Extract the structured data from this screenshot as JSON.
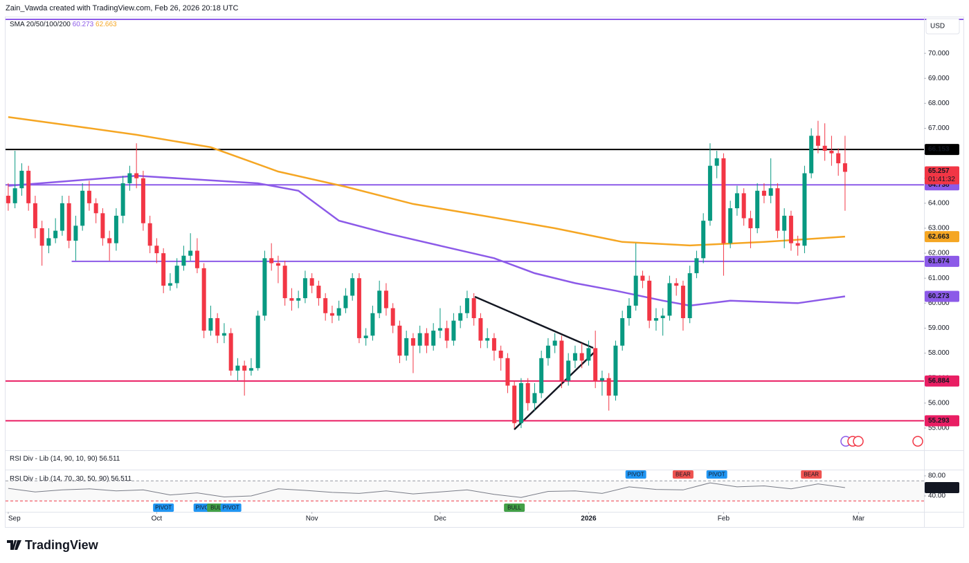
{
  "header": {
    "attribution": "Zain_Vawda created with TradingView.com, Feb 26, 2026 20:18 UTC",
    "indicator": "SMA 20/50/100/200",
    "currency": "USD",
    "brand": "TradingView"
  },
  "chart_data": [
    {
      "type": "candlestick",
      "open": [
        64.3,
        64.0,
        64.6,
        65.3,
        64.0,
        63.0,
        62.3,
        62.6,
        62.9,
        64.0,
        62.5,
        63.1,
        64.5,
        64.0,
        63.6,
        62.6,
        62.4,
        63.5,
        64.8,
        65.2,
        65.0,
        63.2,
        62.3,
        62.0,
        60.7,
        60.8,
        61.5,
        61.9,
        62.1,
        61.4,
        58.9,
        59.4,
        58.7,
        58.8,
        57.3,
        57.5,
        57.3,
        57.4,
        59.5,
        61.8,
        61.6,
        61.5,
        60.2,
        60.1,
        60.2,
        61.0,
        60.7,
        60.2,
        59.6,
        59.5,
        59.8,
        60.3,
        61.0,
        58.6,
        58.7,
        59.6,
        60.5,
        59.8,
        59.1,
        57.9,
        58.6,
        58.3,
        58.8,
        58.3,
        58.9,
        59.0,
        58.5,
        59.3,
        59.6,
        60.2,
        59.4,
        58.5,
        58.6,
        58.1,
        57.8,
        56.7,
        55.2,
        56.8,
        56.0,
        56.4,
        57.8,
        58.3,
        58.5,
        56.9,
        57.7,
        58.0,
        57.7,
        58.2,
        56.9,
        57.0,
        56.3,
        58.3,
        59.4,
        59.9,
        61.1,
        60.9,
        59.3,
        59.4,
        59.5,
        60.8,
        60.7,
        59.4,
        61.2,
        61.8,
        63.3,
        65.5,
        65.8,
        62.4,
        63.8,
        64.4,
        63.4,
        63.0,
        64.5,
        64.3,
        64.6,
        62.9,
        63.5,
        62.4,
        62.3,
        65.2,
        66.7,
        66.3,
        66.1,
        66.0,
        65.6
      ],
      "high": [
        64.8,
        66.1,
        65.6,
        65.5,
        64.3,
        63.3,
        63.0,
        63.4,
        64.3,
        64.3,
        63.5,
        64.8,
        64.9,
        64.2,
        63.8,
        62.9,
        63.8,
        65.1,
        65.5,
        66.4,
        65.3,
        63.5,
        62.6,
        62.2,
        61.2,
        61.8,
        62.3,
        62.8,
        62.6,
        61.6,
        59.9,
        59.6,
        59.2,
        59.0,
        57.8,
        57.7,
        57.8,
        59.7,
        62.1,
        62.4,
        61.9,
        61.7,
        60.6,
        60.5,
        61.3,
        61.2,
        60.9,
        60.4,
        59.9,
        60.1,
        60.6,
        61.2,
        61.2,
        59.0,
        59.9,
        60.9,
        60.8,
        60.0,
        59.3,
        58.9,
        58.8,
        59.1,
        59.0,
        59.2,
        59.8,
        59.3,
        59.6,
        59.9,
        60.5,
        60.4,
        59.6,
        59.0,
        58.8,
        58.3,
        58.0,
        56.9,
        57.0,
        57.0,
        56.8,
        58.1,
        58.6,
        58.8,
        58.7,
        58.0,
        58.3,
        58.4,
        58.5,
        58.9,
        57.3,
        57.2,
        58.5,
        59.7,
        60.2,
        62.4,
        61.3,
        61.1,
        59.8,
        59.8,
        61.1,
        61.0,
        60.9,
        61.5,
        62.1,
        63.6,
        66.4,
        66.1,
        66.0,
        64.1,
        64.7,
        64.6,
        63.7,
        64.8,
        64.8,
        65.8,
        64.8,
        63.8,
        63.7,
        62.7,
        65.5,
        67.0,
        67.3,
        67.2,
        66.7,
        66.2,
        66.7
      ],
      "low": [
        63.7,
        63.8,
        64.3,
        63.7,
        62.6,
        61.5,
        62.0,
        62.4,
        62.7,
        62.2,
        61.7,
        62.9,
        63.7,
        63.2,
        62.3,
        61.7,
        62.1,
        63.2,
        64.5,
        64.6,
        62.9,
        62.0,
        61.6,
        60.4,
        60.5,
        60.6,
        61.3,
        61.7,
        61.2,
        58.6,
        58.7,
        58.4,
        58.4,
        57.1,
        56.9,
        56.3,
        57.1,
        57.3,
        59.3,
        61.3,
        60.8,
        59.9,
        59.7,
        59.8,
        60.0,
        60.4,
        59.9,
        59.3,
        59.2,
        59.3,
        59.6,
        60.1,
        58.4,
        58.3,
        58.5,
        59.4,
        59.5,
        58.8,
        57.6,
        57.7,
        57.2,
        58.0,
        58.0,
        58.1,
        58.6,
        58.2,
        58.3,
        59.0,
        59.4,
        59.1,
        58.2,
        58.2,
        57.7,
        57.3,
        56.4,
        55.0,
        55.0,
        55.7,
        55.7,
        56.2,
        57.5,
        58.0,
        56.6,
        56.7,
        57.4,
        57.4,
        57.5,
        56.6,
        56.3,
        55.7,
        56.1,
        58.1,
        59.1,
        59.7,
        60.6,
        59.0,
        58.9,
        58.7,
        59.3,
        60.3,
        58.9,
        59.2,
        61.0,
        61.6,
        63.1,
        65.0,
        61.1,
        62.2,
        63.5,
        63.1,
        62.2,
        62.8,
        64.0,
        64.0,
        62.6,
        62.2,
        62.1,
        61.9,
        62.0,
        65.0,
        66.0,
        65.7,
        65.5,
        65.1,
        63.7
      ],
      "close": [
        64.0,
        64.6,
        65.3,
        64.0,
        63.0,
        62.3,
        62.6,
        62.9,
        64.0,
        62.5,
        63.1,
        64.5,
        64.0,
        63.6,
        62.6,
        62.4,
        63.5,
        64.8,
        65.2,
        65.0,
        63.2,
        62.3,
        62.0,
        60.7,
        60.8,
        61.5,
        61.9,
        62.1,
        61.4,
        58.9,
        59.4,
        58.7,
        58.8,
        57.3,
        57.5,
        57.3,
        57.4,
        59.5,
        61.8,
        61.6,
        61.5,
        60.2,
        60.1,
        60.2,
        61.0,
        60.7,
        60.2,
        59.6,
        59.5,
        59.8,
        60.3,
        61.0,
        58.6,
        58.7,
        59.6,
        60.5,
        59.8,
        59.1,
        57.9,
        58.6,
        58.3,
        58.8,
        58.3,
        58.9,
        59.0,
        58.5,
        59.3,
        59.6,
        60.2,
        59.4,
        58.5,
        58.6,
        58.1,
        57.8,
        56.7,
        55.2,
        56.8,
        56.0,
        56.4,
        57.8,
        58.3,
        58.5,
        56.9,
        57.7,
        58.0,
        57.7,
        58.2,
        56.9,
        57.0,
        56.3,
        58.3,
        59.4,
        59.9,
        61.1,
        60.9,
        59.3,
        59.4,
        59.5,
        60.8,
        60.7,
        59.4,
        61.2,
        61.8,
        63.3,
        65.5,
        65.8,
        62.4,
        63.8,
        64.4,
        63.4,
        63.0,
        64.5,
        64.3,
        64.6,
        62.9,
        63.5,
        62.4,
        62.3,
        65.2,
        66.7,
        66.3,
        66.1,
        66.0,
        65.6,
        65.257
      ],
      "up_color": "#089981",
      "down_color": "#f23645",
      "countdown": "01:41:32",
      "series": [
        {
          "color": "#8c5ae8",
          "x": [
            0,
            19,
            37,
            43,
            49,
            56,
            64,
            72,
            78,
            84,
            90,
            97,
            101,
            107,
            117,
            124
          ],
          "values": [
            64.7,
            65.1,
            64.8,
            64.5,
            63.3,
            62.8,
            62.3,
            61.8,
            61.2,
            60.8,
            60.5,
            60.1,
            59.9,
            60.1,
            60.0,
            60.273
          ]
        },
        {
          "color": "#f5a623",
          "x": [
            0,
            9,
            19,
            30,
            40,
            50,
            60,
            71,
            81,
            91,
            101,
            112,
            124
          ],
          "values": [
            67.45,
            67.12,
            66.74,
            66.24,
            65.27,
            64.66,
            63.97,
            63.47,
            63.0,
            62.45,
            62.31,
            62.45,
            62.663
          ]
        }
      ],
      "levels": [
        {
          "value": 66.153,
          "color": "#000000"
        },
        {
          "value": 64.738,
          "color": "#8c5ae8"
        },
        {
          "value": 61.674,
          "color": "#8c5ae8",
          "x_start": 9.4
        },
        {
          "value": 56.884,
          "color": "#e91e63"
        },
        {
          "value": 55.293,
          "color": "#e91e63"
        }
      ],
      "xlim": [
        -0.4,
        135.7
      ],
      "xticks": [
        {
          "value": 0,
          "label": "Sep"
        },
        {
          "value": 22,
          "label": "Oct"
        },
        {
          "value": 45,
          "label": "Nov"
        },
        {
          "value": 64,
          "label": "Dec"
        },
        {
          "value": 86,
          "label": "2026"
        },
        {
          "value": 106,
          "label": "Feb"
        },
        {
          "value": 126,
          "label": "Mar"
        }
      ],
      "ylim": [
        54.14,
        71.36
      ],
      "yticks": [
        {
          "value": 55,
          "label": "55.000"
        },
        {
          "value": 56,
          "label": "56.000"
        },
        {
          "value": 57,
          "label": "57.000"
        },
        {
          "value": 58,
          "label": "58.000"
        },
        {
          "value": 59,
          "label": "59.000"
        },
        {
          "value": 60,
          "label": "60.000"
        },
        {
          "value": 61,
          "label": "61.000"
        },
        {
          "value": 62,
          "label": "62.000"
        },
        {
          "value": 63,
          "label": "63.000"
        },
        {
          "value": 64,
          "label": "64.000"
        },
        {
          "value": 65,
          "label": "65.000"
        },
        {
          "value": 66,
          "label": "66.000"
        },
        {
          "value": 67,
          "label": "67.000"
        },
        {
          "value": 68,
          "label": "68.000"
        },
        {
          "value": 69,
          "label": "69.000"
        },
        {
          "value": 70,
          "label": "70.000"
        }
      ],
      "grid": false
    },
    {
      "type": "line",
      "titles": [
        "RSI Div - Lib (14, 90, 10, 90)",
        "RSI Div - Lib (14, 70, 30, 50, 90)"
      ],
      "x": [
        0,
        4,
        8,
        12,
        16,
        20,
        24,
        28,
        32,
        36,
        40,
        44,
        48,
        52,
        56,
        60,
        64,
        68,
        72,
        76,
        80,
        84,
        88,
        92,
        96,
        100,
        104,
        108,
        112,
        116,
        120,
        124
      ],
      "values": [
        55,
        48,
        52,
        54,
        50,
        52,
        42,
        46,
        38,
        40,
        54,
        51,
        47,
        45,
        50,
        44,
        48,
        52,
        43,
        37,
        49,
        50,
        45,
        58,
        53,
        52,
        66,
        58,
        60,
        54,
        64,
        56.511
      ],
      "color": "#787b86",
      "ylim": [
        8.3,
        91
      ],
      "yticks": [
        {
          "value": 80,
          "label": "80.00"
        },
        {
          "value": 40,
          "label": "40.00"
        }
      ],
      "levels": [
        {
          "value": 70,
          "color": "#9598a1"
        },
        {
          "value": 30,
          "color": "#f23645"
        }
      ],
      "annotations": [
        {
          "label": "PIVOT",
          "x": 23,
          "position": "below",
          "color": "#2196f3"
        },
        {
          "label": "PIVOT",
          "x": 29,
          "position": "below",
          "color": "#2196f3"
        },
        {
          "label": "BULL",
          "x": 31,
          "position": "below",
          "color": "#43a047"
        },
        {
          "label": "PIVOT",
          "x": 33,
          "position": "below",
          "color": "#2196f3"
        },
        {
          "label": "BULL",
          "x": 75,
          "position": "below",
          "color": "#43a047"
        },
        {
          "label": "PIVOT",
          "x": 93,
          "position": "above",
          "color": "#2196f3"
        },
        {
          "label": "BEAR",
          "x": 100,
          "position": "above",
          "color": "#ef5350"
        },
        {
          "label": "PIVOT",
          "x": 105,
          "position": "above",
          "color": "#2196f3"
        },
        {
          "label": "BEAR",
          "x": 119,
          "position": "above",
          "color": "#ef5350"
        }
      ]
    }
  ]
}
